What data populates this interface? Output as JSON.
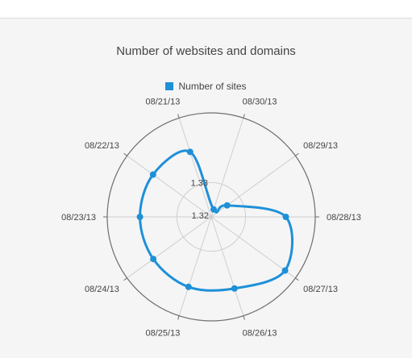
{
  "chart_data": {
    "type": "line",
    "polar": true,
    "title": "Number of websites and domains",
    "legend": {
      "position": "top",
      "entries": [
        "Number of sites"
      ]
    },
    "categories": [
      "08/30/13",
      "08/29/13",
      "08/28/13",
      "08/27/13",
      "08/26/13",
      "08/25/13",
      "08/24/13",
      "08/23/13",
      "08/22/13",
      "08/21/13"
    ],
    "series": [
      {
        "name": "Number of sites",
        "color": "#1e90d8",
        "values": [
          1.3219,
          1.3255,
          1.3423,
          1.3474,
          1.3425,
          1.342,
          1.3414,
          1.3413,
          1.3415,
          1.3404
        ]
      }
    ],
    "radial_axis": {
      "min": 1.3195,
      "max": 1.3513,
      "tick_labels": [
        "1.32",
        "1.33"
      ],
      "tick_values": [
        1.32,
        1.33
      ]
    },
    "grid": true
  }
}
